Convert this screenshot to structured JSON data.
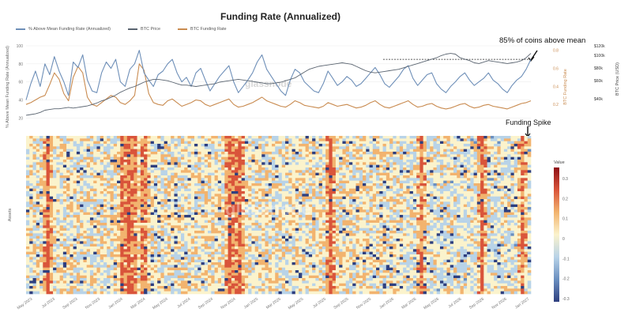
{
  "chart_data": [
    {
      "type": "line",
      "title": "Funding Rate (Annualized)",
      "legend_position": "top-left",
      "series": [
        {
          "name": "% Above Mean Funding Rate (Annualized)",
          "color": "#6e8fb8",
          "values": [
            40,
            58,
            72,
            55,
            80,
            68,
            88,
            72,
            60,
            45,
            82,
            76,
            90,
            62,
            50,
            48,
            70,
            82,
            75,
            85,
            60,
            55,
            74,
            80,
            95,
            70,
            62,
            55,
            68,
            72,
            80,
            85,
            70,
            60,
            65,
            55,
            70,
            75,
            62,
            50,
            58,
            66,
            72,
            78,
            60,
            48,
            55,
            62,
            70,
            82,
            90,
            74,
            66,
            58,
            50,
            45,
            62,
            74,
            70,
            60,
            55,
            50,
            48,
            58,
            72,
            64,
            56,
            60,
            66,
            62,
            55,
            58,
            64,
            70,
            76,
            68,
            58,
            54,
            60,
            66,
            74,
            78,
            64,
            56,
            62,
            68,
            70,
            58,
            52,
            48,
            55,
            60,
            66,
            70,
            62,
            56,
            60,
            64,
            70,
            62,
            58,
            52,
            48,
            56,
            62,
            66,
            74,
            85
          ]
        },
        {
          "name": "BTC Price",
          "color": "#5a6470",
          "values": [
            20,
            21,
            22,
            24,
            27,
            28,
            29,
            29,
            30,
            31,
            30,
            31,
            32,
            33,
            35,
            37,
            40,
            42,
            45,
            48,
            52,
            55,
            58,
            60,
            63,
            66,
            68,
            70,
            70,
            69,
            68,
            66,
            64,
            62,
            62,
            61,
            60,
            61,
            62,
            63,
            64,
            66,
            67,
            68,
            69,
            70,
            69,
            68,
            67,
            66,
            65,
            64,
            64,
            65,
            66,
            68,
            70,
            72,
            76,
            80,
            84,
            86,
            88,
            89,
            90,
            91,
            92,
            93,
            92,
            91,
            88,
            85,
            82,
            80,
            79,
            80,
            81,
            82,
            83,
            84,
            86,
            88,
            90,
            92,
            94,
            96,
            98,
            100,
            103,
            105,
            106,
            105,
            100,
            98,
            96,
            93,
            92,
            94,
            96,
            95,
            94,
            93,
            92,
            93,
            94,
            96,
            100,
            106
          ]
        },
        {
          "name": "BTC Funding Rate",
          "color": "#c98b50",
          "values": [
            0.2,
            0.22,
            0.25,
            0.28,
            0.3,
            0.42,
            0.55,
            0.48,
            0.32,
            0.24,
            0.5,
            0.62,
            0.55,
            0.28,
            0.2,
            0.18,
            0.22,
            0.26,
            0.3,
            0.28,
            0.22,
            0.2,
            0.24,
            0.3,
            0.65,
            0.58,
            0.32,
            0.22,
            0.2,
            0.19,
            0.24,
            0.26,
            0.22,
            0.18,
            0.2,
            0.22,
            0.25,
            0.24,
            0.2,
            0.18,
            0.2,
            0.22,
            0.24,
            0.26,
            0.2,
            0.17,
            0.18,
            0.2,
            0.22,
            0.25,
            0.28,
            0.24,
            0.22,
            0.2,
            0.18,
            0.17,
            0.2,
            0.24,
            0.22,
            0.19,
            0.18,
            0.17,
            0.16,
            0.18,
            0.22,
            0.2,
            0.18,
            0.19,
            0.2,
            0.18,
            0.16,
            0.17,
            0.19,
            0.22,
            0.24,
            0.2,
            0.17,
            0.16,
            0.18,
            0.2,
            0.22,
            0.24,
            0.2,
            0.17,
            0.18,
            0.2,
            0.21,
            0.18,
            0.16,
            0.15,
            0.16,
            0.18,
            0.2,
            0.21,
            0.18,
            0.16,
            0.17,
            0.19,
            0.2,
            0.18,
            0.17,
            0.16,
            0.15,
            0.17,
            0.19,
            0.21,
            0.22,
            0.24
          ]
        }
      ],
      "ylabel_left": "% Above Mean Funding Rate (Annualized)",
      "ylabel_right_1": "BTC Funding Rate",
      "ylabel_right_2": "BTC Price (USD)",
      "y_left_ticks": [
        "100",
        "80",
        "60",
        "40",
        "20"
      ],
      "y_right1_ticks": [
        "0.8",
        "0.6",
        "0.4",
        "0.2"
      ],
      "y_right2_ticks": [
        "$120k",
        "$100k",
        "$80k",
        "$60k",
        "$40k"
      ],
      "watermark": "glassnode",
      "annotation_main": "85% of coins above mean",
      "annotation_spike": "Funding Spike",
      "threshold_value": 85
    },
    {
      "type": "heatmap",
      "ylabel": "Assets",
      "colorbar_title": "Value",
      "colorbar_ticks": [
        "0.3",
        "0.2",
        "0.1",
        "0",
        "-0.1",
        "-0.2",
        "-0.3"
      ],
      "colorscale": [
        "#2e3f7f",
        "#6a8fc0",
        "#b8d3e8",
        "#fbf3cc",
        "#f2b36e",
        "#d9543a",
        "#8e1016"
      ],
      "value_range": [
        -0.3,
        0.3
      ],
      "hot_columns": [
        0.04,
        0.19,
        0.2,
        0.21,
        0.23,
        0.4,
        0.41,
        0.42,
        0.6,
        0.78,
        0.9,
        0.98
      ],
      "x_tick_labels": [
        "May 2023",
        "Jul 2023",
        "Sep 2023",
        "Nov 2023",
        "Jan 2024",
        "Mar 2024",
        "May 2024",
        "Jul 2024",
        "Sep 2024",
        "Nov 2024",
        "Jan 2025",
        "Mar 2025",
        "May 2025",
        "Jul 2025",
        "Sep 2025",
        "Nov 2025",
        "Jan 2026",
        "Mar 2026",
        "May 2026",
        "Jul 2026",
        "Sep 2026",
        "Nov 2026",
        "Jan 2027"
      ],
      "watermark": "glassnode"
    }
  ]
}
